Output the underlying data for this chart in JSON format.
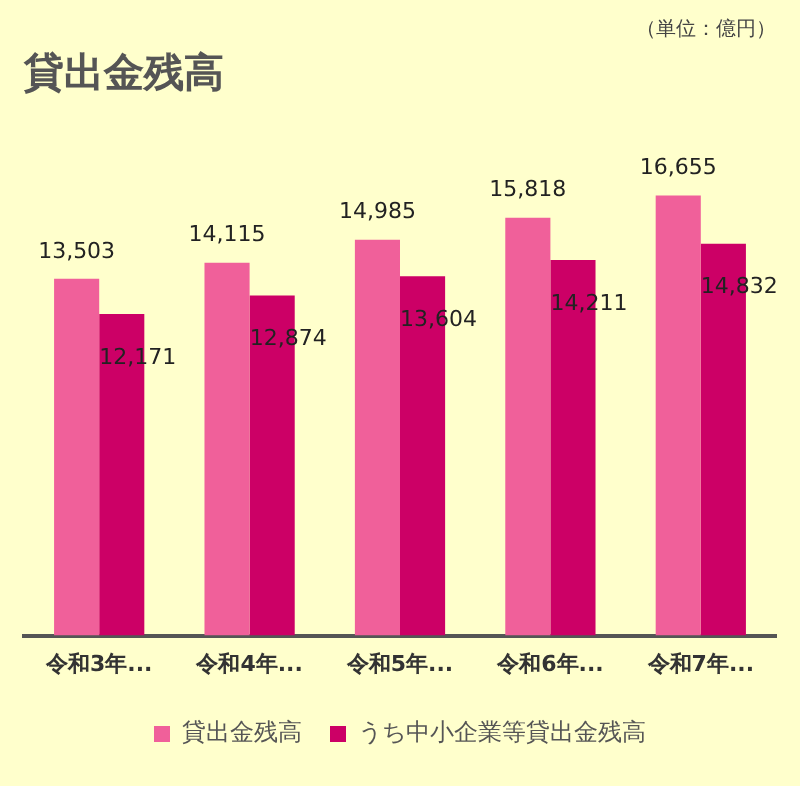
{
  "chart_data": {
    "type": "bar",
    "title": "貸出金残高",
    "annotations": [
      "（単位：億円）"
    ],
    "categories": [
      "令和3年...",
      "令和4年...",
      "令和5年...",
      "令和6年...",
      "令和7年..."
    ],
    "series": [
      {
        "name": "貸出金残高",
        "color": "#f0609a",
        "values": [
          13503,
          14115,
          14985,
          15818,
          16655
        ],
        "value_labels": [
          "13,503",
          "14,115",
          "14,985",
          "15,818",
          "16,655"
        ]
      },
      {
        "name": "うち中小企業等貸出金残高",
        "color": "#cc0066",
        "values": [
          12171,
          12874,
          13604,
          14211,
          14832
        ],
        "value_labels": [
          "12,171",
          "12,874",
          "13,604",
          "14,211",
          "14,832"
        ]
      }
    ],
    "tick_labels": "x",
    "legend": "bottom"
  }
}
